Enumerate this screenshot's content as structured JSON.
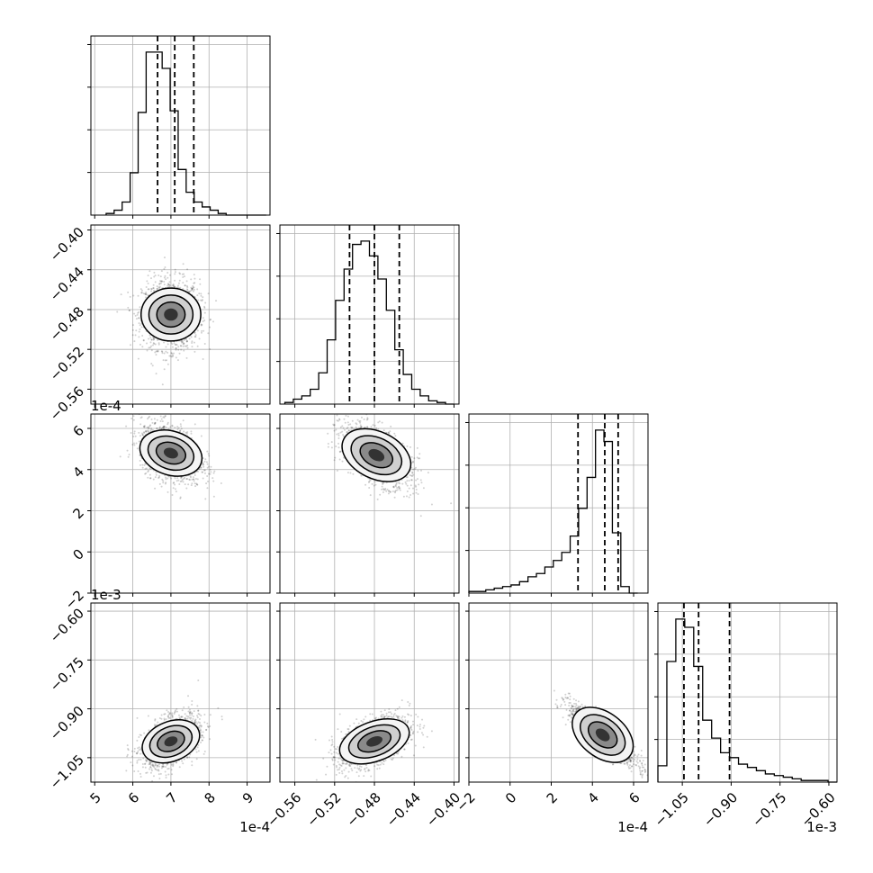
{
  "chart_data": {
    "type": "corner",
    "params": [
      {
        "range": [
          4.9,
          9.6
        ],
        "ticks": [
          {
            "v": 5,
            "l": "5"
          },
          {
            "v": 6,
            "l": "6"
          },
          {
            "v": 7,
            "l": "7"
          },
          {
            "v": 8,
            "l": "8"
          },
          {
            "v": 9,
            "l": "9"
          }
        ],
        "offset": "1e-4",
        "quantiles": [
          6.65,
          7.1,
          7.6
        ]
      },
      {
        "range": [
          -0.575,
          -0.395
        ],
        "ticks": [
          {
            "v": -0.56,
            "l": "−0.56"
          },
          {
            "v": -0.52,
            "l": "−0.52"
          },
          {
            "v": -0.48,
            "l": "−0.48"
          },
          {
            "v": -0.44,
            "l": "−0.44"
          },
          {
            "v": -0.4,
            "l": "−0.40"
          }
        ],
        "offset": "",
        "quantiles": [
          -0.505,
          -0.48,
          -0.455
        ]
      },
      {
        "range": [
          -2.0,
          6.7
        ],
        "ticks": [
          {
            "v": -2,
            "l": "−2"
          },
          {
            "v": 0,
            "l": "0"
          },
          {
            "v": 2,
            "l": "2"
          },
          {
            "v": 4,
            "l": "4"
          },
          {
            "v": 6,
            "l": "6"
          }
        ],
        "offset": "1e-4",
        "quantiles": [
          3.3,
          4.6,
          5.25
        ]
      },
      {
        "range": [
          -1.125,
          -0.575
        ],
        "ticks": [
          {
            "v": -1.05,
            "l": "−1.05"
          },
          {
            "v": -0.9,
            "l": "−0.90"
          },
          {
            "v": -0.75,
            "l": "−0.75"
          },
          {
            "v": -0.6,
            "l": "−0.60"
          }
        ],
        "offset": "1e-3",
        "quantiles": [
          -1.045,
          -1.0,
          -0.905
        ]
      }
    ],
    "histograms": [
      {
        "min": 5.3,
        "max": 9.5,
        "counts": [
          1,
          3,
          8,
          26,
          63,
          100,
          100,
          90,
          64,
          28,
          14,
          8,
          5,
          3,
          1,
          0,
          0,
          0,
          0,
          0
        ]
      },
      {
        "min": -0.57,
        "max": -0.4,
        "counts": [
          1,
          3,
          5,
          9,
          19,
          39,
          63,
          82,
          97,
          99,
          90,
          76,
          57,
          33,
          18,
          9,
          5,
          2,
          1,
          0
        ]
      },
      {
        "min": -2.0,
        "max": 6.2,
        "counts": [
          1,
          1,
          2,
          3,
          4,
          5,
          7,
          10,
          12,
          16,
          20,
          25,
          35,
          52,
          71,
          100,
          93,
          37,
          4,
          0
        ]
      },
      {
        "min": -1.125,
        "max": -0.575,
        "counts": [
          10,
          74,
          100,
          95,
          71,
          38,
          27,
          18,
          15,
          11,
          9,
          7,
          5,
          4,
          3,
          2,
          1,
          1,
          1,
          0
        ]
      }
    ],
    "pairs": [
      {
        "row": 1,
        "col": 0,
        "center": [
          7.0,
          -0.485
        ],
        "spread": [
          0.75,
          0.035
        ],
        "rho": 0.0
      },
      {
        "row": 2,
        "col": 0,
        "center": [
          7.0,
          4.8
        ],
        "spread": [
          0.8,
          1.4
        ],
        "rho": -0.35
      },
      {
        "row": 2,
        "col": 1,
        "center": [
          -0.478,
          4.7
        ],
        "spread": [
          0.035,
          1.5
        ],
        "rho": -0.55
      },
      {
        "row": 3,
        "col": 0,
        "center": [
          7.0,
          -1.0
        ],
        "spread": [
          0.75,
          0.08
        ],
        "rho": 0.45
      },
      {
        "row": 3,
        "col": 1,
        "center": [
          -0.48,
          -1.0
        ],
        "spread": [
          0.035,
          0.08
        ],
        "rho": 0.5
      },
      {
        "row": 3,
        "col": 2,
        "center": [
          4.5,
          -0.98
        ],
        "spread": [
          1.6,
          0.09
        ],
        "rho": -0.88
      }
    ]
  }
}
